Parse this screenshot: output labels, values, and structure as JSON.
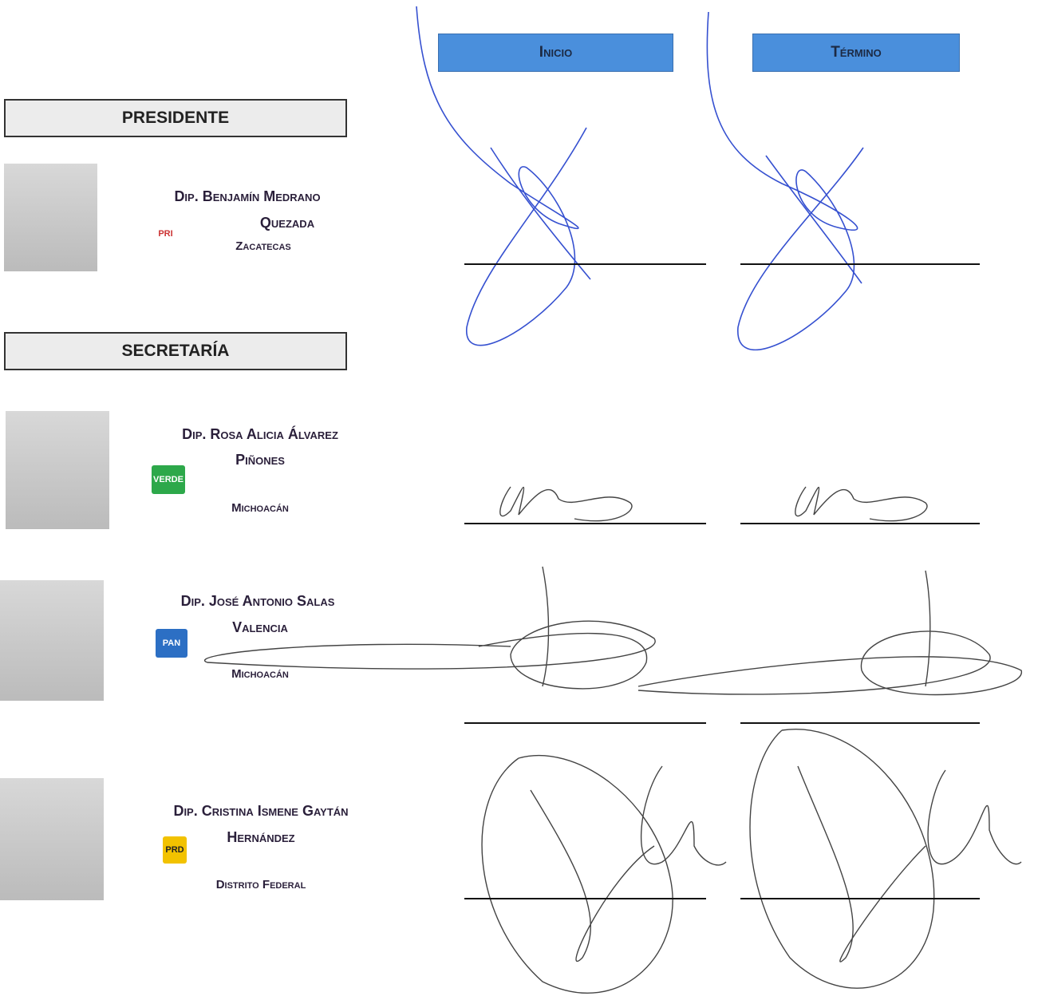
{
  "header": {
    "start": "Inicio",
    "end": "Término"
  },
  "sections": [
    {
      "title": "PRESIDENTE",
      "members": [
        {
          "name_lines": [
            "Dip. Benjamín Medrano",
            "Quezada"
          ],
          "party": "PRI",
          "state": "Zacatecas"
        }
      ]
    },
    {
      "title": "SECRETARÍA",
      "members": [
        {
          "name_lines": [
            "Dip. Rosa Alicia Álvarez",
            "Piñones"
          ],
          "party": "VERDE",
          "state": "Michoacán"
        },
        {
          "name_lines": [
            "Dip. José Antonio Salas",
            "Valencia"
          ],
          "party": "PAN",
          "state": "Michoacán"
        },
        {
          "name_lines": [
            "Dip. Cristina Ismene Gaytán",
            "Hernández"
          ],
          "party": "PRD",
          "state": "Distrito Federal"
        }
      ]
    }
  ]
}
